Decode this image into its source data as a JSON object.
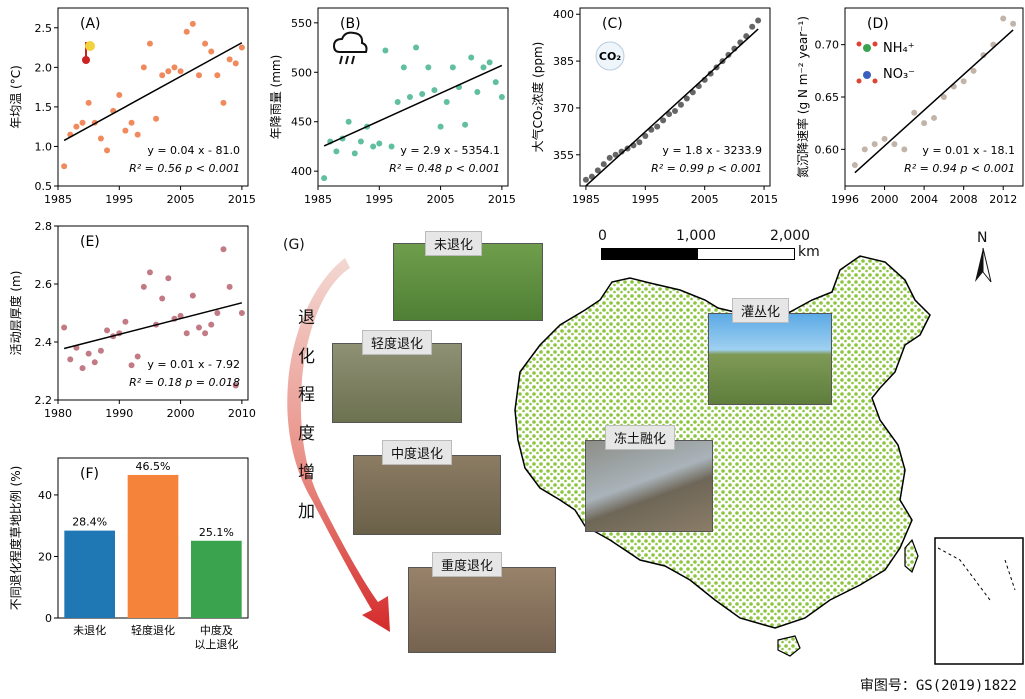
{
  "chart_data": [
    {
      "panel": "(A)",
      "type": "scatter",
      "ylabel": "年均温 (°C)",
      "xticks": [
        "1985",
        "1995",
        "2005",
        "2015"
      ],
      "yticks": [
        "0.5",
        "1.0",
        "1.5",
        "2.0",
        "2.5"
      ],
      "xlim": [
        1985,
        2016
      ],
      "ylim": [
        0.5,
        2.75
      ],
      "x": [
        1986,
        1987,
        1988,
        1989,
        1990,
        1991,
        1992,
        1993,
        1994,
        1995,
        1996,
        1997,
        1998,
        1999,
        2000,
        2001,
        2002,
        2003,
        2004,
        2005,
        2006,
        2007,
        2008,
        2009,
        2010,
        2011,
        2012,
        2013,
        2014,
        2015
      ],
      "y": [
        0.75,
        1.15,
        1.25,
        1.3,
        1.55,
        1.3,
        1.1,
        0.95,
        1.45,
        1.65,
        1.2,
        1.3,
        1.15,
        2.0,
        2.3,
        1.35,
        1.9,
        1.95,
        2.0,
        1.95,
        2.45,
        2.55,
        1.9,
        2.3,
        2.2,
        1.9,
        1.55,
        2.1,
        2.05,
        2.25
      ],
      "fit": {
        "slope": 0.04,
        "intercept": -81.0
      },
      "equation": "y = 0.04 x - 81.0",
      "r2_label": "R² = 0.56 p < 0.001",
      "color": "#f08a5d",
      "icon": "thermometer-icon"
    },
    {
      "panel": "(B)",
      "type": "scatter",
      "ylabel": "年降雨量 (mm)",
      "xticks": [
        "1985",
        "1995",
        "2005",
        "2015"
      ],
      "yticks": [
        "400",
        "450",
        "500",
        "550"
      ],
      "xlim": [
        1985,
        2016
      ],
      "ylim": [
        385,
        565
      ],
      "x": [
        1986,
        1987,
        1988,
        1989,
        1990,
        1991,
        1992,
        1993,
        1994,
        1995,
        1996,
        1997,
        1998,
        1999,
        2000,
        2001,
        2002,
        2003,
        2004,
        2005,
        2006,
        2007,
        2008,
        2009,
        2010,
        2011,
        2012,
        2013,
        2014,
        2015
      ],
      "y": [
        393,
        430,
        420,
        433,
        450,
        418,
        430,
        445,
        425,
        428,
        522,
        425,
        470,
        505,
        475,
        525,
        478,
        505,
        482,
        445,
        470,
        505,
        485,
        447,
        515,
        480,
        505,
        510,
        490,
        475
      ],
      "fit": {
        "slope": 2.9,
        "intercept": -5354.1
      },
      "equation": "y = 2.9 x - 5354.1",
      "r2_label": "R² = 0.48 p < 0.001",
      "color": "#5fbf9f",
      "icon": "rain-cloud-icon"
    },
    {
      "panel": "(C)",
      "type": "scatter",
      "ylabel": "大气CO₂浓度 (ppm)",
      "xticks": [
        "1985",
        "1995",
        "2005",
        "2015"
      ],
      "yticks": [
        "355",
        "370",
        "385",
        "400"
      ],
      "xlim": [
        1984,
        2016
      ],
      "ylim": [
        345,
        402
      ],
      "x": [
        1985,
        1986,
        1987,
        1988,
        1989,
        1990,
        1991,
        1992,
        1993,
        1994,
        1995,
        1996,
        1997,
        1998,
        1999,
        2000,
        2001,
        2002,
        2003,
        2004,
        2005,
        2006,
        2007,
        2008,
        2009,
        2010,
        2011,
        2012,
        2013,
        2014
      ],
      "y": [
        347,
        348,
        350,
        352,
        354,
        355,
        356,
        357,
        358,
        359,
        361,
        363,
        364,
        366,
        368,
        369,
        371,
        373,
        375,
        377,
        379,
        381,
        383,
        385,
        387,
        389,
        391,
        393,
        396,
        398
      ],
      "fit": {
        "slope": 1.8,
        "intercept": -3233.9
      },
      "equation": "y = 1.8 x - 3233.9",
      "r2_label": "R² = 0.99 p < 0.001",
      "color": "#666666",
      "icon": "co2-icon",
      "icon_text": "CO₂"
    },
    {
      "panel": "(D)",
      "type": "scatter",
      "ylabel": "氮沉降速率 (g N m⁻² year⁻¹)",
      "xticks": [
        "1996",
        "2000",
        "2004",
        "2008",
        "2012"
      ],
      "yticks": [
        "0.60",
        "0.65",
        "0.70"
      ],
      "xlim": [
        1996,
        2014
      ],
      "ylim": [
        0.565,
        0.735
      ],
      "x": [
        1997,
        1998,
        1999,
        2000,
        2001,
        2002,
        2003,
        2004,
        2005,
        2006,
        2007,
        2008,
        2009,
        2010,
        2011,
        2012,
        2013
      ],
      "y": [
        0.585,
        0.6,
        0.605,
        0.61,
        0.605,
        0.6,
        0.635,
        0.625,
        0.63,
        0.65,
        0.66,
        0.665,
        0.675,
        0.69,
        0.7,
        0.725,
        0.72
      ],
      "fit": {
        "slope": 0.01,
        "intercept": -18.1
      },
      "equation": "y = 0.01 x - 18.1",
      "r2_label": "R² = 0.94 p < 0.001",
      "color": "#c2b4a8",
      "icon": "molecule-icon",
      "legend": [
        "NH₄⁺",
        "NO₃⁻"
      ]
    },
    {
      "panel": "(E)",
      "type": "scatter",
      "ylabel": "活动层厚度 (m)",
      "xticks": [
        "1980",
        "1990",
        "2000",
        "2010"
      ],
      "yticks": [
        "2.2",
        "2.4",
        "2.6",
        "2.8"
      ],
      "xlim": [
        1980,
        2011
      ],
      "ylim": [
        2.2,
        2.8
      ],
      "x": [
        1981,
        1982,
        1983,
        1984,
        1985,
        1986,
        1987,
        1988,
        1989,
        1990,
        1991,
        1992,
        1993,
        1994,
        1995,
        1996,
        1997,
        1998,
        1999,
        2000,
        2001,
        2002,
        2003,
        2004,
        2005,
        2006,
        2007,
        2008,
        2009,
        2010
      ],
      "y": [
        2.45,
        2.34,
        2.38,
        2.31,
        2.36,
        2.33,
        2.37,
        2.44,
        2.42,
        2.43,
        2.47,
        2.32,
        2.35,
        2.59,
        2.64,
        2.46,
        2.55,
        2.62,
        2.48,
        2.49,
        2.43,
        2.56,
        2.45,
        2.43,
        2.46,
        2.5,
        2.72,
        2.59,
        2.25,
        2.5
      ],
      "fit": {
        "slope": 0.01,
        "intercept": -7.92
      },
      "equation": "y = 0.01 x - 7.92",
      "r2_label": "R² = 0.18 p = 0.018",
      "color": "#c27b84"
    },
    {
      "panel": "(F)",
      "type": "bar",
      "ylabel": "不同退化程度草地比例 (%)",
      "categories": [
        "未退化",
        "轻度退化",
        "中度及\n以上退化"
      ],
      "values": [
        28.4,
        46.5,
        25.1
      ],
      "value_labels": [
        "28.4%",
        "46.5%",
        "25.1%"
      ],
      "colors": [
        "#1f77b4",
        "#f5843a",
        "#3aa34d"
      ],
      "yticks": [
        "0",
        "20",
        "40"
      ],
      "ylim": [
        0,
        52
      ]
    }
  ],
  "map": {
    "panel": "(G)",
    "arrow_text": [
      "退",
      "化",
      "程",
      "度",
      "增",
      "加"
    ],
    "photo_labels": [
      "未退化",
      "轻度退化",
      "中度退化",
      "重度退化",
      "灌丛化",
      "冻土融化"
    ],
    "scale_ticks": [
      "0",
      "1,000",
      "2,000"
    ],
    "scale_unit": "km",
    "north": "N",
    "colors": {
      "grassland": "#8cc63f",
      "outline": "#000000"
    }
  },
  "credit": "审图号：GS(2019)1822"
}
